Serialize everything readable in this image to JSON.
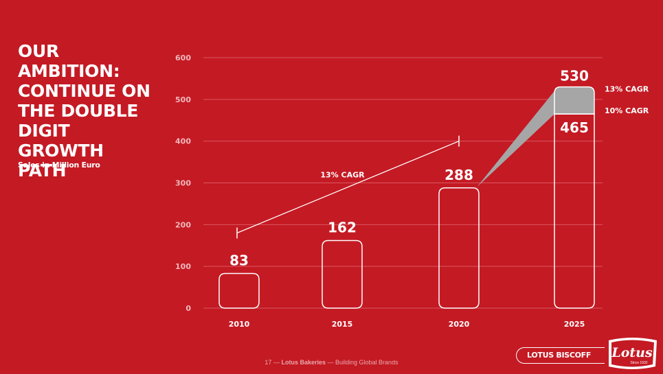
{
  "title_lines": [
    "OUR AMBITION:",
    "CONTINUE ON",
    "THE DOUBLE",
    "DIGIT GROWTH",
    "PATH"
  ],
  "subtitle": "Sales in Million Euro",
  "chart_data": {
    "type": "bar",
    "categories": [
      "2010",
      "2015",
      "2020",
      "2025"
    ],
    "values": [
      83,
      162,
      288,
      465
    ],
    "value_labels": [
      "83",
      "162",
      "288",
      "465"
    ],
    "stacked_top": {
      "category": "2025",
      "base": 465,
      "top": 530,
      "label": "530"
    },
    "y_ticks": [
      0,
      100,
      200,
      300,
      400,
      500,
      600
    ],
    "ylim": [
      0,
      600
    ],
    "grid": true,
    "annotations": {
      "trend_label": "13% CAGR",
      "trend_from": {
        "x": "2010",
        "y": 180
      },
      "trend_to": {
        "x": "2020",
        "y": 400
      },
      "upper_label": "13% CAGR",
      "lower_label": "10% CAGR"
    }
  },
  "footer": {
    "page": "17",
    "sep": "—",
    "company": "Lotus Bakeries",
    "tagline": "Building Global Brands"
  },
  "brand": {
    "pill_text": "LOTUS BISCOFF",
    "logo_text": "Lotus",
    "logo_since": "Since 1932"
  },
  "colors": {
    "background": "#c41a24",
    "bar_outline": "#ffffff",
    "gap_fill": "#a6a6a6",
    "grid": "#d9585f",
    "axis_tick_text": "#f0b8bb"
  }
}
